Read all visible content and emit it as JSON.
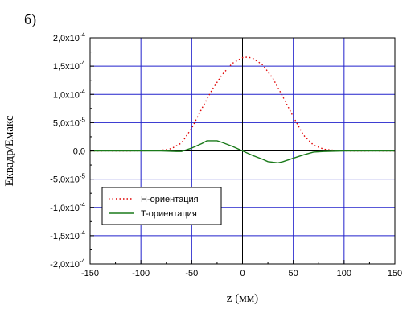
{
  "panel_label": "б)",
  "chart_data": {
    "type": "line",
    "xlabel": "z (мм)",
    "ylabel": "Еквадр/Емакс",
    "xlim": [
      -150,
      150
    ],
    "ylim": [
      -0.0002,
      0.0002
    ],
    "x_ticks": [
      -150,
      -100,
      -50,
      0,
      50,
      100,
      150
    ],
    "x_tick_labels": [
      "-150",
      "-100",
      "-50",
      "0",
      "50",
      "100",
      "150"
    ],
    "y_ticks": [
      {
        "value": 0.0002,
        "mantissa": "2,0x10",
        "exp": "-4"
      },
      {
        "value": 0.00015,
        "mantissa": "1,5x10",
        "exp": "-4"
      },
      {
        "value": 0.0001,
        "mantissa": "1,0x10",
        "exp": "-4"
      },
      {
        "value": 5e-05,
        "mantissa": "5,0x10",
        "exp": "-5"
      },
      {
        "value": 0,
        "mantissa": "0,0",
        "exp": ""
      },
      {
        "value": -5e-05,
        "mantissa": "-5,0x10",
        "exp": "-5"
      },
      {
        "value": -0.0001,
        "mantissa": "-1,0x10",
        "exp": "-4"
      },
      {
        "value": -0.00015,
        "mantissa": "-1,5x10",
        "exp": "-4"
      },
      {
        "value": -0.0002,
        "mantissa": "-2,0x10",
        "exp": "-4"
      }
    ],
    "grid": true,
    "legend_position": "bottom-left",
    "series": [
      {
        "name": "H-ориентация",
        "color": "#e00000",
        "style": "dotted",
        "x": [
          -150,
          -100,
          -80,
          -70,
          -60,
          -50,
          -40,
          -30,
          -20,
          -10,
          0,
          5,
          10,
          20,
          30,
          40,
          50,
          60,
          70,
          80,
          90,
          100,
          150
        ],
        "y": [
          0,
          0,
          1e-06,
          4e-06,
          1.4e-05,
          4e-05,
          7.5e-05,
          0.000108,
          0.000135,
          0.000155,
          0.000165,
          0.000166,
          0.000164,
          0.000152,
          0.000128,
          9.5e-05,
          6e-05,
          2.8e-05,
          1e-05,
          3e-06,
          1e-06,
          0,
          0
        ]
      },
      {
        "name": "T-ориентация",
        "color": "#1a7a1a",
        "style": "solid",
        "x": [
          -150,
          -100,
          -80,
          -65,
          -60,
          -50,
          -40,
          -35,
          -25,
          -20,
          -10,
          0,
          10,
          20,
          25,
          35,
          40,
          50,
          60,
          70,
          80,
          100,
          150
        ],
        "y": [
          0,
          0,
          0,
          -1e-06,
          -1e-06,
          5e-06,
          1.3e-05,
          1.8e-05,
          1.8e-05,
          1.5e-05,
          8e-06,
          0,
          -8e-06,
          -1.5e-05,
          -1.9e-05,
          -2.1e-05,
          -1.9e-05,
          -1.3e-05,
          -7e-06,
          -2e-06,
          -1e-06,
          0,
          0
        ]
      }
    ]
  }
}
